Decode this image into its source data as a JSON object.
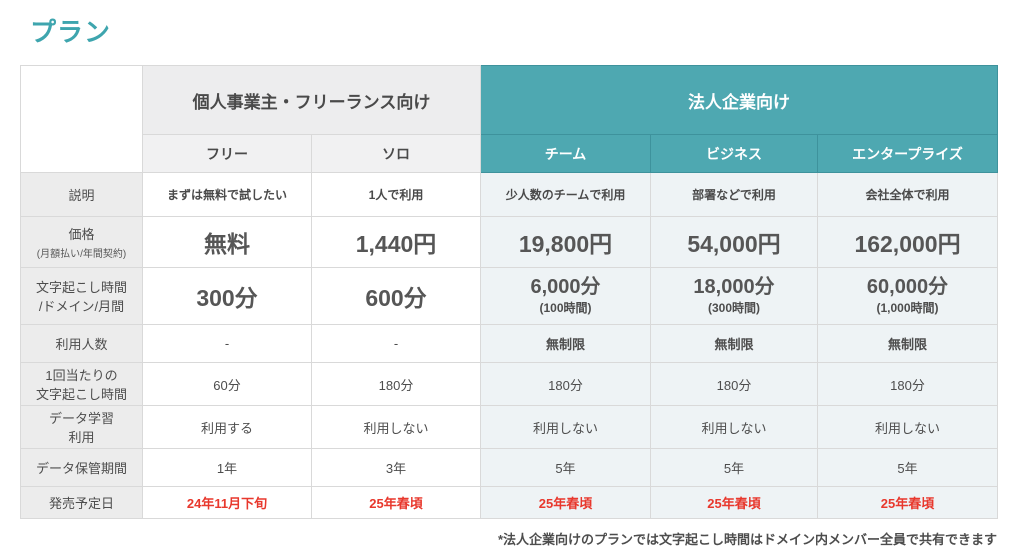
{
  "page": {
    "title": "プラン",
    "footnote": "*法人企業向けのプランでは文字起こし時間はドメイン内メンバー全員で共有できます"
  },
  "colors": {
    "accent_teal": "#4ea8b1",
    "teal_border": "#3e929c",
    "label_bg": "#ececec",
    "corp_cell_bg": "#eef3f5",
    "highlight_red": "#e8382d"
  },
  "table": {
    "group_headers": [
      {
        "label": "個人事業主・フリーランス向け"
      },
      {
        "label": "法人企業向け"
      }
    ],
    "plans": [
      "フリー",
      "ソロ",
      "チーム",
      "ビジネス",
      "エンタープライズ"
    ],
    "rows": [
      {
        "label": "説明",
        "cells": [
          {
            "main": "まずは無料で試したい"
          },
          {
            "main": "1人で利用"
          },
          {
            "main": "少人数のチームで利用"
          },
          {
            "main": "部署などで利用"
          },
          {
            "main": "会社全体で利用"
          }
        ]
      },
      {
        "label": "価格",
        "sublabel": "(月額払い/年間契約)",
        "cells": [
          {
            "main": "無料"
          },
          {
            "main": "1,440円"
          },
          {
            "main": "19,800円"
          },
          {
            "main": "54,000円"
          },
          {
            "main": "162,000円"
          }
        ]
      },
      {
        "label": "文字起こし時間",
        "label2": "/ドメイン/月間",
        "cells": [
          {
            "main": "300分"
          },
          {
            "main": "600分"
          },
          {
            "main": "6,000分",
            "sub": "(100時間)"
          },
          {
            "main": "18,000分",
            "sub": "(300時間)"
          },
          {
            "main": "60,000分",
            "sub": "(1,000時間)"
          }
        ]
      },
      {
        "label": "利用人数",
        "cells": [
          {
            "main": "-"
          },
          {
            "main": "-"
          },
          {
            "main": "無制限"
          },
          {
            "main": "無制限"
          },
          {
            "main": "無制限"
          }
        ]
      },
      {
        "label": "1回当たりの",
        "label2": "文字起こし時間",
        "cells": [
          {
            "main": "60分"
          },
          {
            "main": "180分"
          },
          {
            "main": "180分"
          },
          {
            "main": "180分"
          },
          {
            "main": "180分"
          }
        ]
      },
      {
        "label": "データ学習",
        "label2": "利用",
        "cells": [
          {
            "main": "利用する"
          },
          {
            "main": "利用しない"
          },
          {
            "main": "利用しない"
          },
          {
            "main": "利用しない"
          },
          {
            "main": "利用しない"
          }
        ]
      },
      {
        "label": "データ保管期間",
        "cells": [
          {
            "main": "1年"
          },
          {
            "main": "3年"
          },
          {
            "main": "5年"
          },
          {
            "main": "5年"
          },
          {
            "main": "5年"
          }
        ]
      },
      {
        "label": "発売予定日",
        "cells": [
          {
            "main": "24年11月下旬"
          },
          {
            "main": "25年春頃"
          },
          {
            "main": "25年春頃"
          },
          {
            "main": "25年春頃"
          },
          {
            "main": "25年春頃"
          }
        ]
      }
    ]
  }
}
